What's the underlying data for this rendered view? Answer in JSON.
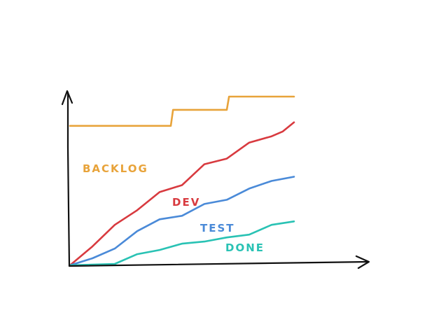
{
  "chart_data": {
    "type": "line",
    "title": "",
    "xlabel": "",
    "ylabel": "",
    "grid": false,
    "legend": "none",
    "xlim": [
      0,
      20
    ],
    "ylim": [
      0,
      25
    ],
    "series": [
      {
        "name": "BACKLOG",
        "color": "#e8a33a",
        "x": [
          0,
          9,
          9.2,
          14,
          14.2,
          20
        ],
        "y": [
          20,
          20,
          22.3,
          22.3,
          24.2,
          24.2
        ]
      },
      {
        "name": "DEV",
        "color": "#d83a3f",
        "x": [
          0,
          2,
          4,
          6,
          8,
          10,
          12,
          14,
          16,
          18,
          19,
          20
        ],
        "y": [
          0,
          2.7,
          5.8,
          7.9,
          10.5,
          11.5,
          14.5,
          15.3,
          17.6,
          18.5,
          19.2,
          20.5
        ]
      },
      {
        "name": "TEST",
        "color": "#4a8ad8",
        "x": [
          0,
          2,
          4,
          6,
          8,
          10,
          12,
          14,
          16,
          18,
          20
        ],
        "y": [
          0,
          1.0,
          2.4,
          4.9,
          6.6,
          7.1,
          8.8,
          9.4,
          11.0,
          12.1,
          12.7
        ]
      },
      {
        "name": "DONE",
        "color": "#29c2b4",
        "x": [
          0,
          4,
          6,
          8,
          10,
          12,
          14,
          16,
          18,
          20
        ],
        "y": [
          0,
          0.2,
          1.6,
          2.2,
          3.1,
          3.4,
          4.0,
          4.4,
          5.8,
          6.3
        ]
      }
    ]
  }
}
